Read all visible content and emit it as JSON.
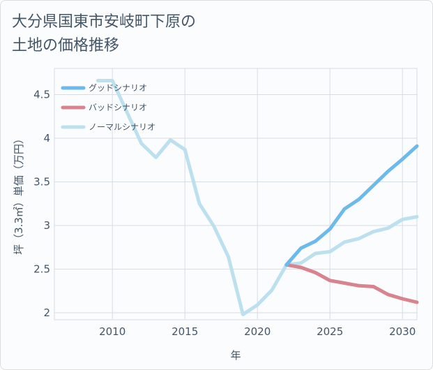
{
  "title_line1": "大分県国東市安岐町下原の",
  "title_line2": "土地の価格推移",
  "colors": {
    "good": "#6cb9ec",
    "bad": "#d9838f",
    "normal": "#bde0ee",
    "text": "#445566",
    "grid": "#d5dde5"
  },
  "chart_data": {
    "type": "line",
    "xlabel": "年",
    "ylabel": "坪（3.3㎡）単価（万円）",
    "xlim": [
      2006,
      2031
    ],
    "ylim": [
      1.92,
      4.8
    ],
    "xticks": [
      2010,
      2015,
      2020,
      2025,
      2030
    ],
    "yticks": [
      2,
      2.5,
      3,
      3.5,
      4,
      4.5
    ],
    "series": [
      {
        "name": "グッドシナリオ",
        "color": "#6cb9ec",
        "x": [
          2022,
          2023,
          2024,
          2025,
          2026,
          2027,
          2028,
          2029,
          2030,
          2031
        ],
        "y": [
          2.55,
          2.74,
          2.82,
          2.96,
          3.19,
          3.3,
          3.46,
          3.62,
          3.76,
          3.91
        ]
      },
      {
        "name": "バッドシナリオ",
        "color": "#d9838f",
        "x": [
          2022,
          2023,
          2024,
          2025,
          2026,
          2027,
          2028,
          2029,
          2030,
          2031
        ],
        "y": [
          2.55,
          2.52,
          2.46,
          2.37,
          2.34,
          2.31,
          2.3,
          2.21,
          2.16,
          2.12
        ]
      },
      {
        "name": "ノーマルシナリオ",
        "color": "#bde0ee",
        "x": [
          2009,
          2010,
          2011,
          2012,
          2013,
          2014,
          2015,
          2016,
          2017,
          2018,
          2019,
          2020,
          2021,
          2022,
          2023,
          2024,
          2025,
          2026,
          2027,
          2028,
          2029,
          2030,
          2031
        ],
        "y": [
          4.66,
          4.66,
          4.3,
          3.94,
          3.78,
          3.98,
          3.87,
          3.25,
          2.99,
          2.64,
          1.98,
          2.09,
          2.26,
          2.55,
          2.57,
          2.68,
          2.7,
          2.81,
          2.85,
          2.93,
          2.97,
          3.07,
          3.1
        ]
      }
    ]
  }
}
